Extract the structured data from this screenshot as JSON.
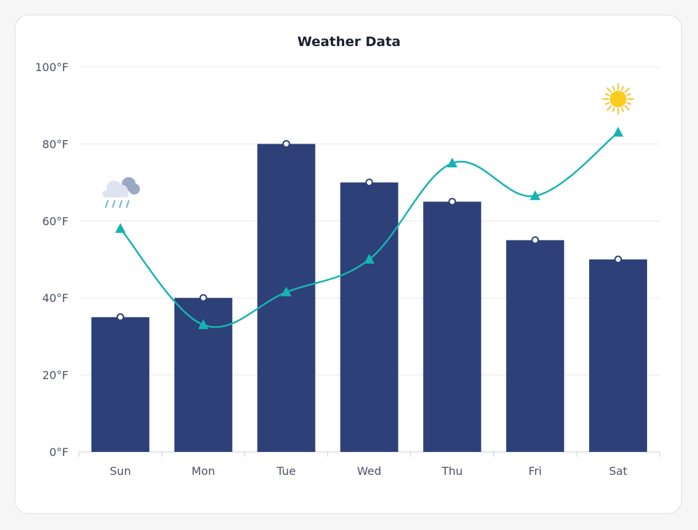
{
  "chart_data": {
    "type": "bar+line",
    "title": "Weather Data",
    "categories": [
      "Sun",
      "Mon",
      "Tue",
      "Wed",
      "Thu",
      "Fri",
      "Sat"
    ],
    "y_ticks": [
      "0°F",
      "20°F",
      "40°F",
      "60°F",
      "80°F",
      "100°F"
    ],
    "ylim": [
      0,
      100
    ],
    "grid": "horizontal",
    "series": [
      {
        "type": "bar",
        "values": [
          35,
          40,
          80,
          70,
          65,
          55,
          50
        ],
        "color": "#2d4077",
        "marker": "circle"
      },
      {
        "type": "line",
        "values": [
          58,
          33,
          41.5,
          50,
          75,
          66.5,
          83
        ],
        "color": "#16b3b1",
        "marker": "triangle",
        "smooth": true
      }
    ],
    "annotations": [
      {
        "category": "Sun",
        "icon": "rain-cloud-icon"
      },
      {
        "category": "Sat",
        "icon": "sun-icon"
      }
    ]
  }
}
